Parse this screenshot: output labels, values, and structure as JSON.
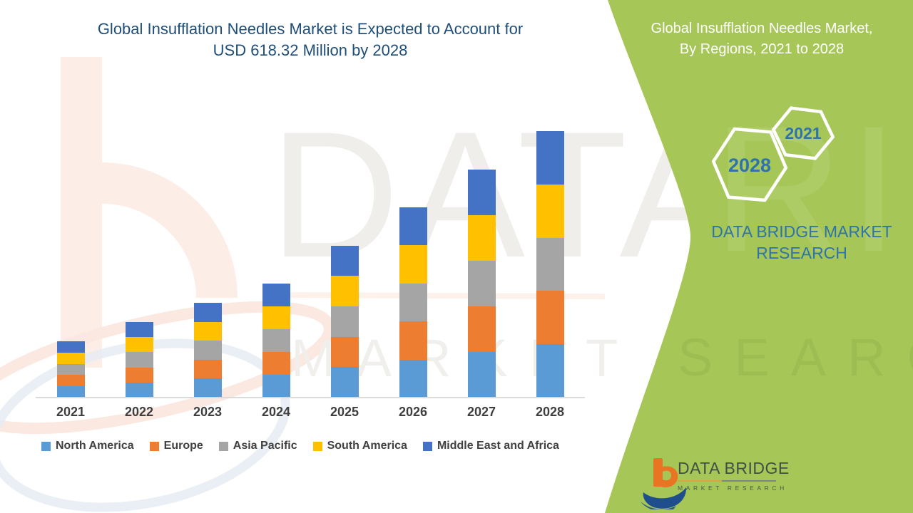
{
  "left_title": {
    "line1": "Global Insufflation Needles Market is Expected to Account for",
    "line2": "USD 618.32 Million by 2028"
  },
  "right_panel": {
    "title_line1": "Global Insufflation Needles Market,",
    "title_line2": "By Regions, 2021 to 2028",
    "hexagon_small_label": "2021",
    "hexagon_large_label": "2028",
    "brand_line1": "DATA BRIDGE MARKET",
    "brand_line2": "RESEARCH",
    "panel_color": "#A6C757"
  },
  "footer_logo": {
    "name": "DATA BRIDGE",
    "sub": "MARKET RESEARCH"
  },
  "watermark": {
    "big_text": "DATA BRID",
    "spaced_text": "MARKET RESEARCH",
    "panel_big_text": "RIDGE",
    "panel_spaced_text": "SEARCH"
  },
  "chart_data": {
    "type": "bar",
    "stacked": true,
    "title": "Global Insufflation Needles Market, By Regions, 2021 to 2028",
    "unit": "USD Million",
    "highlight_value": "USD 618.32 Million by 2028",
    "categories": [
      "2021",
      "2022",
      "2023",
      "2024",
      "2025",
      "2026",
      "2027",
      "2028"
    ],
    "series": [
      {
        "name": "North America",
        "color": "#5B9BD5",
        "values": [
          26.1,
          35.1,
          44.0,
          52.9,
          70.5,
          88.4,
          105.9,
          123.7
        ]
      },
      {
        "name": "Europe",
        "color": "#ED7D31",
        "values": [
          26.1,
          35.1,
          44.0,
          52.9,
          70.5,
          88.4,
          105.9,
          123.7
        ]
      },
      {
        "name": "Asia Pacific",
        "color": "#A5A5A5",
        "values": [
          26.1,
          35.1,
          44.0,
          52.9,
          70.5,
          88.4,
          105.9,
          123.7
        ]
      },
      {
        "name": "South America",
        "color": "#FFC000",
        "values": [
          26.1,
          35.1,
          44.0,
          52.9,
          70.5,
          88.4,
          105.9,
          123.7
        ]
      },
      {
        "name": "Middle East and Africa",
        "color": "#4472C4",
        "values": [
          26.1,
          35.1,
          44.0,
          52.9,
          70.5,
          88.4,
          105.9,
          123.7
        ]
      }
    ],
    "totals_estimated": [
      130.6,
      175.4,
      220.1,
      264.7,
      352.4,
      441.8,
      529.5,
      618.32
    ],
    "ylim": [
      0,
      640
    ],
    "y_axis_visible": false,
    "gridlines": false,
    "legend_position": "bottom"
  }
}
